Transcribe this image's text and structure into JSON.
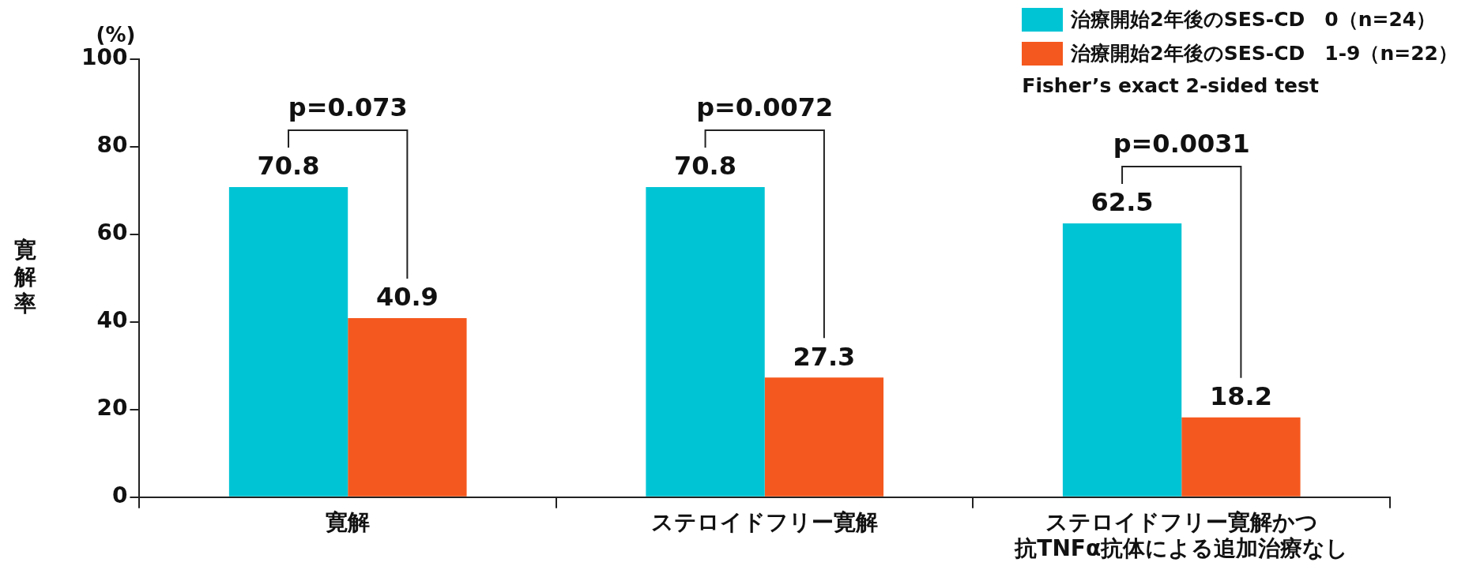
{
  "chart_data": {
    "type": "bar",
    "ylabel": "寛解率",
    "categories": [
      "寛解",
      "ステロイドフリー寛解",
      "ステロイドフリー寛解かつ抗TNFα抗体による追加治療なし"
    ],
    "series": [
      {
        "name": "治療開始2年後のSES-CD　0（n=24）",
        "color": "#00c4d4",
        "values": [
          70.8,
          70.8,
          62.5
        ]
      },
      {
        "name": "治療開始2年後のSES-CD　1-9（n=22）",
        "color": "#f5581e",
        "values": [
          40.9,
          27.3,
          18.2
        ]
      }
    ],
    "ylim": [
      0,
      100
    ],
    "yticks": [
      0,
      20,
      40,
      60,
      80,
      100
    ],
    "grid": false,
    "legend": "top right",
    "data_labels": true,
    "annotations": [
      "(%)",
      "Fisher’s exact 2-sided test",
      "p=0.073",
      "p=0.0072",
      "p=0.0031"
    ]
  }
}
